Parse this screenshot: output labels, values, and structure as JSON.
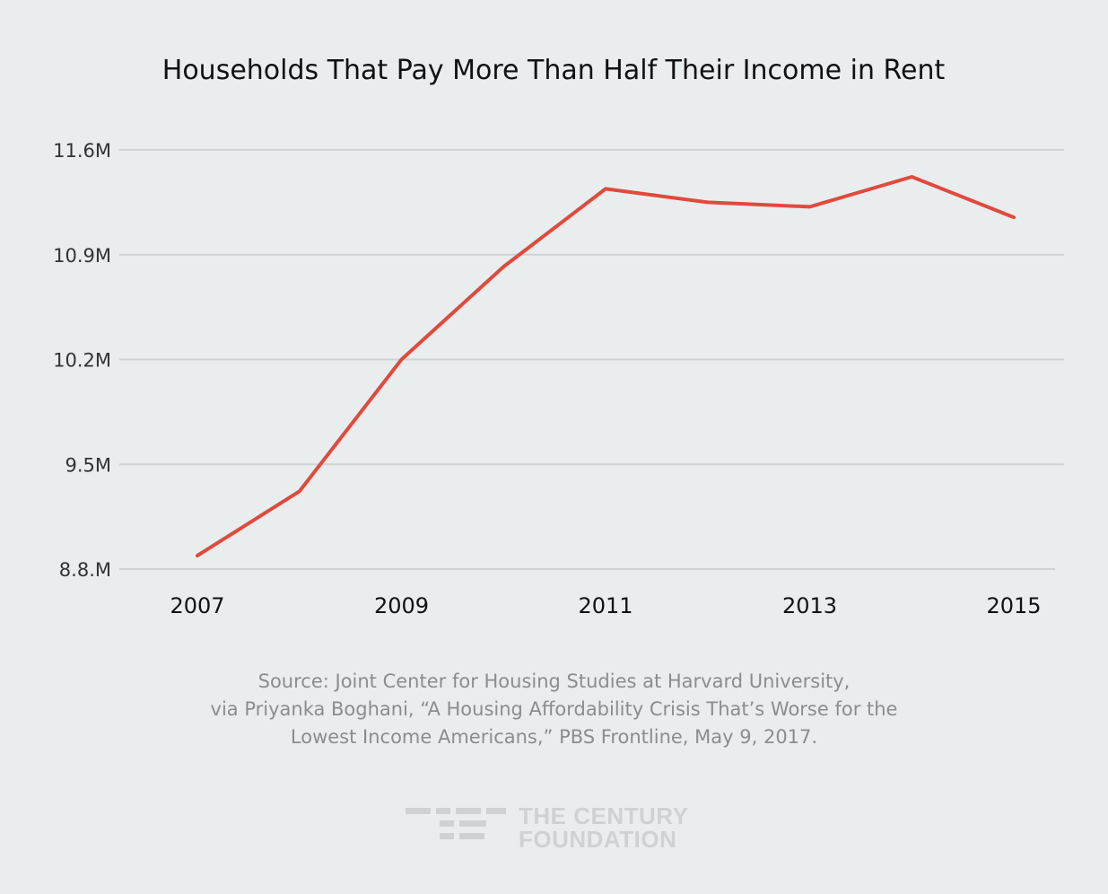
{
  "chart_data": {
    "type": "line",
    "title": "Households That Pay More Than Half Their Income in Rent",
    "xlabel": "",
    "ylabel": "",
    "x": [
      2007,
      2008,
      2009,
      2010,
      2011,
      2012,
      2013,
      2014,
      2015
    ],
    "series": [
      {
        "name": "Households",
        "color": "#e04a3c",
        "values": [
          8.89,
          9.32,
          10.2,
          10.82,
          11.34,
          11.25,
          11.22,
          11.42,
          11.15
        ]
      }
    ],
    "xlim": [
      2007,
      2015
    ],
    "ylim": [
      8.8,
      11.6
    ],
    "xticks": [
      {
        "value": 2007,
        "label": "2007"
      },
      {
        "value": 2009,
        "label": "2009"
      },
      {
        "value": 2011,
        "label": "2011"
      },
      {
        "value": 2013,
        "label": "2013"
      },
      {
        "value": 2015,
        "label": "2015"
      }
    ],
    "yticks": [
      {
        "value": 11.6,
        "label": "11.6M"
      },
      {
        "value": 10.9,
        "label": "10.9M"
      },
      {
        "value": 10.2,
        "label": "10.2M"
      },
      {
        "value": 9.5,
        "label": "9.5M"
      },
      {
        "value": 8.8,
        "label": "8.8.M"
      }
    ],
    "grid": true,
    "legend": "none"
  },
  "source": {
    "line1": "Source: Joint Center for Housing Studies at Harvard University,",
    "line2": "via Priyanka Boghani, “A Housing Affordability Crisis That’s Worse for the",
    "line3": "Lowest Income Americans,” PBS Frontline, May 9, 2017."
  },
  "logo": {
    "line1": "THE CENTURY",
    "line2": "FOUNDATION",
    "color": "#cfd2d4"
  }
}
